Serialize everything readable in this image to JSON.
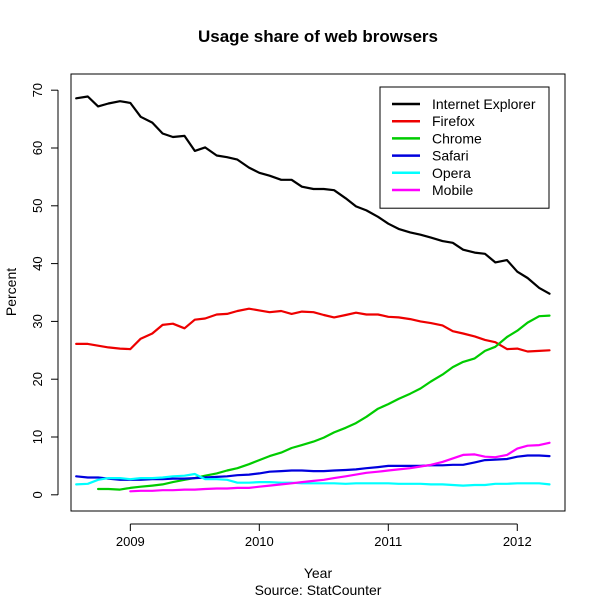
{
  "chart_data": {
    "type": "line",
    "title": "Usage share of web browsers",
    "xlabel": "Year",
    "ylabel": "Percent",
    "caption": "Source: StatCounter",
    "xlim": [
      2008.54,
      2012.37
    ],
    "ylim": [
      -2.8,
      72.8
    ],
    "xticks": [
      2009,
      2010,
      2011,
      2012
    ],
    "yticks": [
      0,
      10,
      20,
      30,
      40,
      50,
      60,
      70
    ],
    "legend_position": "top-right",
    "grid": false,
    "series": [
      {
        "name": "Internet Explorer",
        "color": "#000000",
        "x": [
          2008.58,
          2008.67,
          2008.75,
          2008.83,
          2008.92,
          2009.0,
          2009.08,
          2009.17,
          2009.25,
          2009.33,
          2009.42,
          2009.5,
          2009.58,
          2009.67,
          2009.75,
          2009.83,
          2009.92,
          2010.0,
          2010.08,
          2010.17,
          2010.25,
          2010.33,
          2010.42,
          2010.5,
          2010.58,
          2010.67,
          2010.75,
          2010.83,
          2010.92,
          2011.0,
          2011.08,
          2011.17,
          2011.25,
          2011.33,
          2011.42,
          2011.5,
          2011.58,
          2011.67,
          2011.75,
          2011.83,
          2011.92,
          2012.0,
          2012.08,
          2012.17,
          2012.25
        ],
        "values": [
          68.6,
          68.9,
          67.2,
          67.7,
          68.1,
          67.8,
          65.4,
          64.4,
          62.5,
          61.9,
          62.1,
          59.5,
          60.1,
          58.7,
          58.4,
          58.0,
          56.6,
          55.7,
          55.2,
          54.5,
          54.5,
          53.3,
          52.9,
          52.9,
          52.7,
          51.3,
          49.9,
          49.2,
          48.1,
          46.9,
          46.0,
          45.4,
          45.0,
          44.5,
          43.9,
          43.6,
          42.4,
          41.9,
          41.7,
          40.2,
          40.6,
          38.6,
          37.5,
          35.8,
          34.8
        ]
      },
      {
        "name": "Firefox",
        "color": "#ee0000",
        "x": [
          2008.58,
          2008.67,
          2008.75,
          2008.83,
          2008.92,
          2009.0,
          2009.08,
          2009.17,
          2009.25,
          2009.33,
          2009.42,
          2009.5,
          2009.58,
          2009.67,
          2009.75,
          2009.83,
          2009.92,
          2010.0,
          2010.08,
          2010.17,
          2010.25,
          2010.33,
          2010.42,
          2010.5,
          2010.58,
          2010.67,
          2010.75,
          2010.83,
          2010.92,
          2011.0,
          2011.08,
          2011.17,
          2011.25,
          2011.33,
          2011.42,
          2011.5,
          2011.58,
          2011.67,
          2011.75,
          2011.83,
          2011.92,
          2012.0,
          2012.08,
          2012.17,
          2012.25
        ],
        "values": [
          26.1,
          26.1,
          25.8,
          25.5,
          25.3,
          25.2,
          27.0,
          27.9,
          29.4,
          29.6,
          28.8,
          30.3,
          30.5,
          31.2,
          31.3,
          31.8,
          32.2,
          31.9,
          31.6,
          31.8,
          31.3,
          31.7,
          31.6,
          31.1,
          30.7,
          31.1,
          31.5,
          31.2,
          31.2,
          30.8,
          30.7,
          30.4,
          30.0,
          29.7,
          29.3,
          28.3,
          27.9,
          27.4,
          26.8,
          26.4,
          25.2,
          25.3,
          24.8,
          24.9,
          25.0
        ]
      },
      {
        "name": "Chrome",
        "color": "#00cc00",
        "x": [
          2008.75,
          2008.83,
          2008.92,
          2009.0,
          2009.08,
          2009.17,
          2009.25,
          2009.33,
          2009.42,
          2009.5,
          2009.58,
          2009.67,
          2009.75,
          2009.83,
          2009.92,
          2010.0,
          2010.08,
          2010.17,
          2010.25,
          2010.33,
          2010.42,
          2010.5,
          2010.58,
          2010.67,
          2010.75,
          2010.83,
          2010.92,
          2011.0,
          2011.08,
          2011.17,
          2011.25,
          2011.33,
          2011.42,
          2011.5,
          2011.58,
          2011.67,
          2011.75,
          2011.83,
          2011.92,
          2012.0,
          2012.08,
          2012.17,
          2012.25
        ],
        "values": [
          1.0,
          1.0,
          0.9,
          1.2,
          1.4,
          1.6,
          1.8,
          2.2,
          2.6,
          2.9,
          3.3,
          3.7,
          4.2,
          4.6,
          5.3,
          6.0,
          6.7,
          7.3,
          8.1,
          8.6,
          9.2,
          9.9,
          10.8,
          11.6,
          12.4,
          13.5,
          14.9,
          15.7,
          16.6,
          17.5,
          18.4,
          19.6,
          20.8,
          22.1,
          23.0,
          23.6,
          24.9,
          25.6,
          27.3,
          28.4,
          29.8,
          30.9,
          31.0
        ]
      },
      {
        "name": "Safari",
        "color": "#0000dd",
        "x": [
          2008.58,
          2008.67,
          2008.75,
          2008.83,
          2008.92,
          2009.0,
          2009.08,
          2009.17,
          2009.25,
          2009.33,
          2009.42,
          2009.5,
          2009.58,
          2009.67,
          2009.75,
          2009.83,
          2009.92,
          2010.0,
          2010.08,
          2010.17,
          2010.25,
          2010.33,
          2010.42,
          2010.5,
          2010.58,
          2010.67,
          2010.75,
          2010.83,
          2010.92,
          2011.0,
          2011.08,
          2011.17,
          2011.25,
          2011.33,
          2011.42,
          2011.5,
          2011.58,
          2011.67,
          2011.75,
          2011.83,
          2011.92,
          2012.0,
          2012.08,
          2012.17,
          2012.25
        ],
        "values": [
          3.2,
          3.0,
          3.0,
          2.8,
          2.6,
          2.6,
          2.6,
          2.7,
          2.7,
          2.8,
          2.8,
          2.9,
          3.0,
          3.1,
          3.2,
          3.4,
          3.5,
          3.7,
          4.0,
          4.1,
          4.2,
          4.2,
          4.1,
          4.1,
          4.2,
          4.3,
          4.4,
          4.6,
          4.8,
          5.0,
          5.0,
          5.0,
          5.0,
          5.1,
          5.1,
          5.2,
          5.2,
          5.6,
          6.0,
          6.1,
          6.2,
          6.6,
          6.8,
          6.8,
          6.7
        ]
      },
      {
        "name": "Opera",
        "color": "#00ffff",
        "x": [
          2008.58,
          2008.67,
          2008.75,
          2008.83,
          2008.92,
          2009.0,
          2009.08,
          2009.17,
          2009.25,
          2009.33,
          2009.42,
          2009.5,
          2009.58,
          2009.67,
          2009.75,
          2009.83,
          2009.92,
          2010.0,
          2010.08,
          2010.17,
          2010.25,
          2010.33,
          2010.42,
          2010.5,
          2010.58,
          2010.67,
          2010.75,
          2010.83,
          2010.92,
          2011.0,
          2011.08,
          2011.17,
          2011.25,
          2011.33,
          2011.42,
          2011.5,
          2011.58,
          2011.67,
          2011.75,
          2011.83,
          2011.92,
          2012.0,
          2012.08,
          2012.17,
          2012.25
        ],
        "values": [
          1.8,
          1.9,
          2.6,
          2.9,
          2.9,
          2.7,
          2.9,
          2.9,
          3.0,
          3.2,
          3.3,
          3.6,
          2.7,
          2.7,
          2.6,
          2.1,
          2.1,
          2.2,
          2.2,
          2.1,
          2.1,
          2.0,
          2.0,
          2.0,
          2.0,
          1.9,
          2.0,
          2.0,
          2.0,
          2.0,
          1.9,
          1.9,
          1.9,
          1.8,
          1.8,
          1.7,
          1.6,
          1.7,
          1.7,
          1.9,
          1.9,
          2.0,
          2.0,
          2.0,
          1.8
        ]
      },
      {
        "name": "Mobile",
        "color": "#ff00ff",
        "x": [
          2009.0,
          2009.08,
          2009.17,
          2009.25,
          2009.33,
          2009.42,
          2009.5,
          2009.58,
          2009.67,
          2009.75,
          2009.83,
          2009.92,
          2010.0,
          2010.08,
          2010.17,
          2010.25,
          2010.33,
          2010.42,
          2010.5,
          2010.58,
          2010.67,
          2010.75,
          2010.83,
          2010.92,
          2011.0,
          2011.08,
          2011.17,
          2011.25,
          2011.33,
          2011.42,
          2011.5,
          2011.58,
          2011.67,
          2011.75,
          2011.83,
          2011.92,
          2012.0,
          2012.08,
          2012.17,
          2012.25
        ],
        "values": [
          0.6,
          0.7,
          0.7,
          0.8,
          0.8,
          0.9,
          0.9,
          1.0,
          1.1,
          1.1,
          1.2,
          1.2,
          1.4,
          1.6,
          1.8,
          2.0,
          2.2,
          2.4,
          2.6,
          2.9,
          3.2,
          3.5,
          3.8,
          4.0,
          4.2,
          4.4,
          4.6,
          4.9,
          5.2,
          5.7,
          6.3,
          6.9,
          7.0,
          6.6,
          6.5,
          6.9,
          8.0,
          8.5,
          8.6,
          9.0
        ]
      }
    ]
  }
}
